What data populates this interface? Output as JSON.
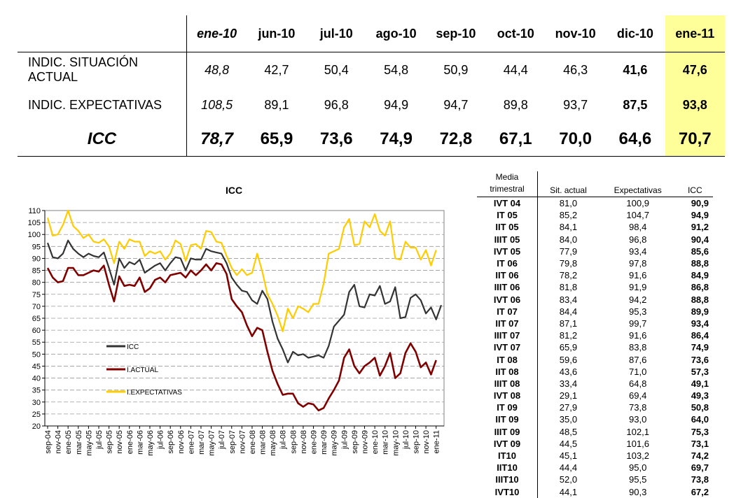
{
  "summary_table": {
    "columns": [
      "ene-10",
      "jun-10",
      "jul-10",
      "ago-10",
      "sep-10",
      "oct-10",
      "nov-10",
      "dic-10",
      "ene-11"
    ],
    "rows": [
      {
        "label": "INDIC. SITUACIÓN ACTUAL",
        "values": [
          "48,8",
          "42,7",
          "50,4",
          "54,8",
          "50,9",
          "44,4",
          "46,3",
          "41,6",
          "47,6"
        ]
      },
      {
        "label": "INDIC. EXPECTATIVAS",
        "values": [
          "108,5",
          "89,1",
          "96,8",
          "94,9",
          "94,7",
          "89,8",
          "93,7",
          "87,5",
          "93,8"
        ]
      },
      {
        "label": "ICC",
        "values": [
          "78,7",
          "65,9",
          "73,6",
          "74,9",
          "72,8",
          "67,1",
          "70,0",
          "64,6",
          "70,7"
        ]
      }
    ],
    "highlight_color": "#ffff99"
  },
  "quarterly_table": {
    "header": {
      "col1_line1": "Media",
      "col1_line2": "trimestral",
      "col2": "Sit. actual",
      "col3": "Expectativas",
      "col4": "ICC"
    },
    "rows": [
      [
        "IVT 04",
        "81,0",
        "100,9",
        "90,9"
      ],
      [
        "IT   05",
        "85,2",
        "104,7",
        "94,9"
      ],
      [
        "IIT  05",
        "84,1",
        "98,4",
        "91,2"
      ],
      [
        "IIIT 05",
        "84,0",
        "96,8",
        "90,4"
      ],
      [
        "IVT 05",
        "77,9",
        "93,4",
        "85,6"
      ],
      [
        "IT   06",
        "79,8",
        "97,8",
        "88,8"
      ],
      [
        "IIT 06",
        "78,2",
        "91,6",
        "84,9"
      ],
      [
        "IIIT 06",
        "81,8",
        "91,9",
        "86,8"
      ],
      [
        "IVT 06",
        "83,4",
        "94,2",
        "88,8"
      ],
      [
        "IT   07",
        "84,4",
        "95,3",
        "89,9"
      ],
      [
        "IIT  07",
        "87,1",
        "99,7",
        "93,4"
      ],
      [
        "IIIT  07",
        "81,2",
        "91,6",
        "86,4"
      ],
      [
        "IVT 07",
        "65,9",
        "83,8",
        "74,9"
      ],
      [
        "IT 08",
        "59,6",
        "87,6",
        "73,6"
      ],
      [
        "IIT 08",
        "43,6",
        "71,0",
        "57,3"
      ],
      [
        "IIIT 08",
        "33,4",
        "64,8",
        "49,1"
      ],
      [
        "IVT  08",
        "29,1",
        "69,4",
        "49,3"
      ],
      [
        "IT 09",
        "27,9",
        "73,8",
        "50,8"
      ],
      [
        "IIT 09",
        "35,0",
        "93,0",
        "64,0"
      ],
      [
        "IIIT 09",
        "48,5",
        "102,1",
        "75,3"
      ],
      [
        "IVT 09",
        "44,5",
        "101,6",
        "73,1"
      ],
      [
        "IT10",
        "45,1",
        "103,2",
        "74,2"
      ],
      [
        "IIT10",
        "44,4",
        "95,0",
        "69,7"
      ],
      [
        "IIIT10",
        "52,0",
        "95,5",
        "73,8"
      ],
      [
        "IVT10",
        "44,1",
        "90,3",
        "67,2"
      ]
    ]
  },
  "chart_data": {
    "type": "line",
    "title": "ICC",
    "ylim": [
      20,
      110
    ],
    "yticks": [
      20,
      25,
      30,
      35,
      40,
      45,
      50,
      55,
      60,
      65,
      70,
      75,
      80,
      85,
      90,
      95,
      100,
      105,
      110
    ],
    "grid": true,
    "legend_position": "lower-middle-left",
    "x_tick_labels": [
      "sep-04",
      "nov-04",
      "ene-05",
      "mar-05",
      "may-05",
      "jul-05",
      "sep-05",
      "nov-05",
      "ene-06",
      "mar-06",
      "may-06",
      "jul-06",
      "sep-06",
      "nov-06",
      "ene-07",
      "mar-07",
      "may-07",
      "jul-07",
      "sep-07",
      "nov-07",
      "ene-08",
      "mar-08",
      "may-08",
      "jul-08",
      "sep-08",
      "nov-08",
      "ene-09",
      "mar-09",
      "may-09",
      "jul-09",
      "sep-09",
      "nov-09",
      "ene-10",
      "mar-10",
      "may-10",
      "jul-10",
      "sep-10",
      "nov-10",
      "ene-11"
    ],
    "series": [
      {
        "name": "ICC",
        "color": "#333333",
        "values": [
          96.5,
          90.5,
          90,
          92,
          97.5,
          94,
          92,
          90.5,
          92,
          91,
          90.5,
          92.5,
          86,
          79,
          90,
          86,
          88.5,
          87.5,
          89.5,
          84,
          85.5,
          87,
          88,
          85,
          88,
          90.5,
          90,
          85,
          90,
          89.5,
          89.5,
          94,
          93,
          92.5,
          92,
          88,
          82,
          79,
          76.5,
          76,
          72.5,
          71,
          76.5,
          73,
          63.5,
          56.5,
          52,
          46.5,
          51,
          49.5,
          50,
          48.5,
          49,
          49.5,
          48.5,
          53.5,
          61.5,
          64,
          66.5,
          76,
          79,
          70,
          69.5,
          75,
          74.5,
          78.5,
          71,
          72,
          78,
          65,
          65.5,
          73.5,
          75,
          72.5,
          67,
          69.5,
          64.5,
          70.5
        ]
      },
      {
        "name": "I.ACTUAL",
        "color": "#800000",
        "values": [
          86,
          82,
          80,
          80.5,
          86,
          86,
          83,
          83,
          84,
          85,
          84.5,
          87,
          79,
          72,
          82.5,
          78.5,
          79,
          78.5,
          82,
          76,
          77.5,
          81,
          82,
          80,
          83,
          83.5,
          84,
          82,
          85,
          83,
          85,
          87.5,
          85,
          88,
          87.5,
          83.5,
          73,
          70,
          67.5,
          62,
          57.5,
          61,
          60,
          51,
          43,
          37.5,
          33,
          33.5,
          33.5,
          29.5,
          28,
          29.5,
          29,
          26.5,
          27.5,
          31.5,
          35,
          39,
          48.5,
          52,
          45,
          42,
          45,
          46.5,
          48.5,
          41,
          45,
          50.5,
          40,
          42,
          50.5,
          54.5,
          51,
          44.5,
          46.5,
          41.5,
          47.5
        ]
      },
      {
        "name": "I.EXPECTATIVAS",
        "color": "#ffcc00",
        "values": [
          107,
          99.5,
          100,
          104,
          110,
          103.5,
          101.5,
          98.5,
          100,
          97,
          96.5,
          98,
          95,
          88,
          97,
          94,
          98,
          97,
          97,
          91,
          93,
          92,
          93,
          89.5,
          92,
          97.5,
          96,
          89,
          95.5,
          96,
          94,
          101.5,
          101,
          97,
          96.5,
          91,
          86,
          83,
          85.5,
          83,
          84,
          92,
          84.5,
          75,
          71,
          66,
          59.5,
          69,
          65,
          70,
          69,
          67.5,
          71,
          71,
          79.5,
          92,
          93,
          94,
          103,
          106.5,
          95.5,
          96,
          105.5,
          103,
          108.5,
          101.5,
          99.5,
          105.5,
          90,
          89.5,
          97,
          94.5,
          94.5,
          89.5,
          93.5,
          87,
          93.5
        ]
      }
    ]
  }
}
